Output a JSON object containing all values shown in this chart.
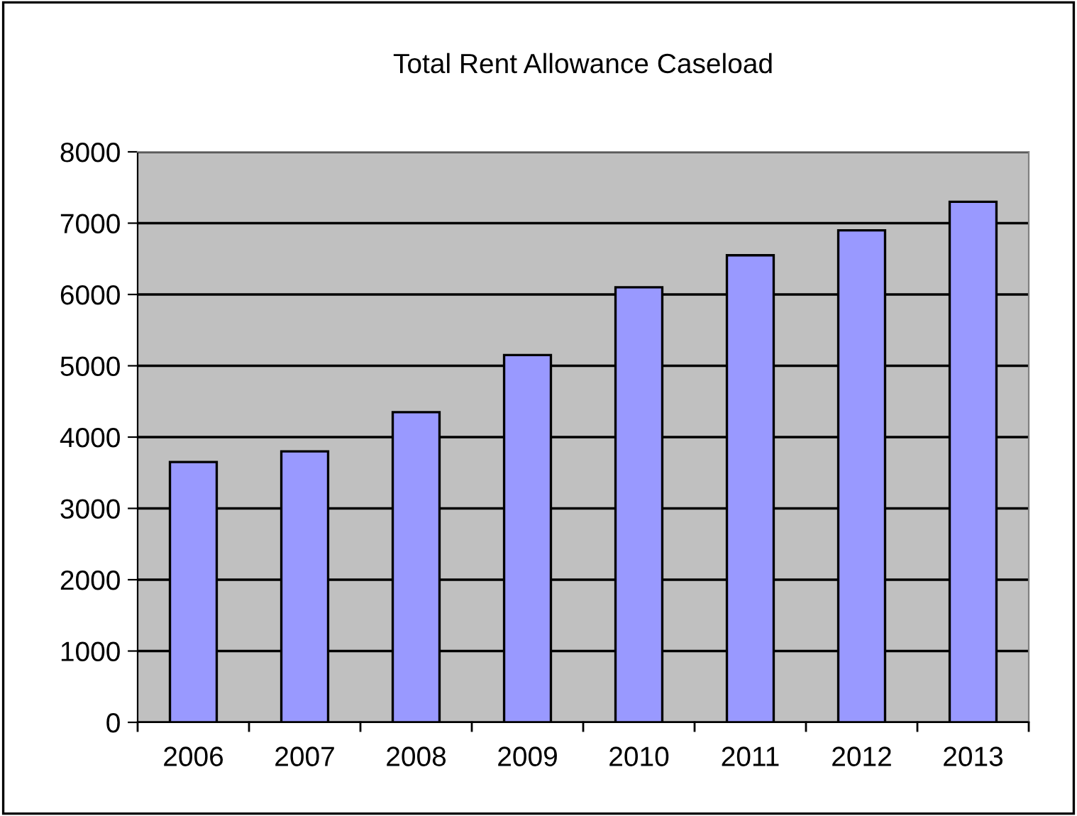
{
  "chart_data": {
    "type": "bar",
    "title": "Total Rent Allowance Caseload",
    "categories": [
      "2006",
      "2007",
      "2008",
      "2009",
      "2010",
      "2011",
      "2012",
      "2013"
    ],
    "values": [
      3650,
      3800,
      4350,
      5150,
      6100,
      6550,
      6900,
      7300
    ],
    "color": "#9999ff",
    "ylim": [
      0,
      8000
    ],
    "yticks": [
      0,
      1000,
      2000,
      3000,
      4000,
      5000,
      6000,
      7000,
      8000
    ],
    "grid": "y"
  }
}
